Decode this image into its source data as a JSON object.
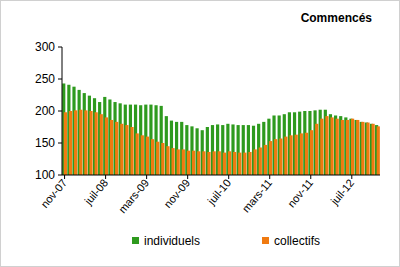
{
  "chart_data": {
    "type": "bar",
    "title": "Commencés",
    "categories": [
      "nov-07",
      null,
      null,
      null,
      null,
      null,
      null,
      null,
      "juil-08",
      null,
      null,
      null,
      null,
      null,
      null,
      null,
      "mars-09",
      null,
      null,
      null,
      null,
      null,
      null,
      null,
      "nov-09",
      null,
      null,
      null,
      null,
      null,
      null,
      null,
      "juil-10",
      null,
      null,
      null,
      null,
      null,
      null,
      null,
      "mars-11",
      null,
      null,
      null,
      null,
      null,
      null,
      null,
      "nov-11",
      null,
      null,
      null,
      null,
      null,
      null,
      null,
      "juil-12",
      null,
      null,
      null,
      null,
      null
    ],
    "series": [
      {
        "name": "individuels",
        "color": "#2e9a1e",
        "values": [
          243,
          241,
          238,
          233,
          228,
          224,
          220,
          214,
          222,
          218,
          214,
          212,
          210,
          210,
          210,
          209,
          210,
          210,
          209,
          208,
          192,
          185,
          183,
          183,
          178,
          176,
          173,
          170,
          175,
          178,
          179,
          178,
          180,
          179,
          178,
          178,
          178,
          177,
          180,
          183,
          188,
          193,
          193,
          195,
          198,
          198,
          199,
          200,
          200,
          201,
          202,
          202,
          195,
          193,
          192,
          190,
          188,
          186,
          183,
          182,
          180,
          178
        ]
      },
      {
        "name": "collectifs",
        "color": "#f07a10",
        "values": [
          198,
          200,
          201,
          202,
          201,
          200,
          198,
          195,
          190,
          186,
          183,
          180,
          178,
          175,
          165,
          162,
          160,
          156,
          152,
          150,
          145,
          142,
          140,
          140,
          138,
          138,
          137,
          137,
          136,
          137,
          137,
          135,
          137,
          136,
          135,
          135,
          136,
          140,
          143,
          147,
          153,
          156,
          157,
          160,
          162,
          163,
          165,
          166,
          170,
          180,
          188,
          192,
          190,
          188,
          186,
          186,
          188,
          186,
          183,
          182,
          180,
          176
        ]
      }
    ],
    "ylim": [
      100,
      300
    ],
    "yticks": [
      100,
      150,
      200,
      250,
      300
    ],
    "grid": false,
    "legend": "bottom",
    "stacked": false
  }
}
